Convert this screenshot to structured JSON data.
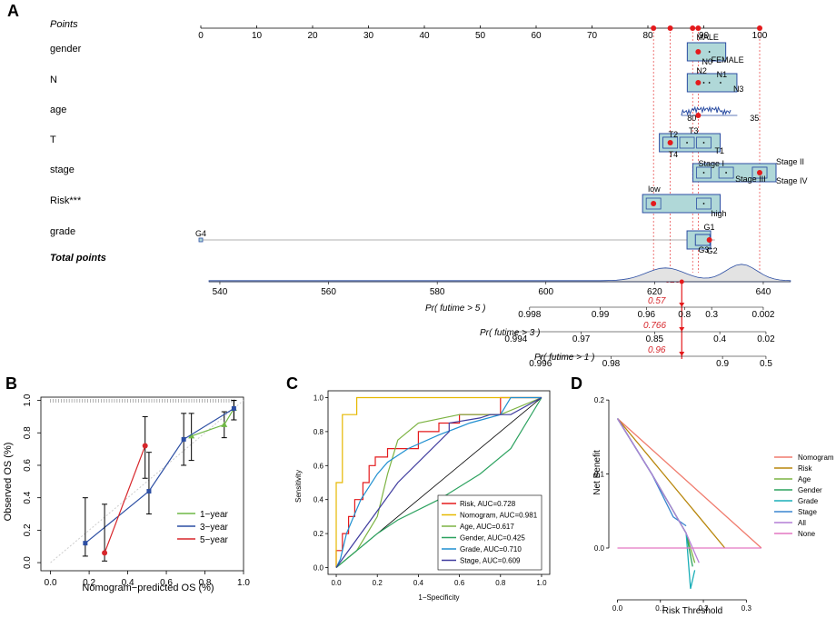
{
  "panel_labels": [
    "A",
    "B",
    "C",
    "D"
  ],
  "chart_data": [
    {
      "type": "nomogram",
      "panel": "A",
      "points_label": "Points",
      "points_ticks": [
        "0",
        "10",
        "20",
        "30",
        "40",
        "50",
        "60",
        "70",
        "80",
        "90",
        "100"
      ],
      "points_values": [
        0,
        10,
        20,
        30,
        40,
        50,
        60,
        70,
        80,
        90,
        100
      ],
      "selected_points": [
        81,
        84,
        88,
        89,
        100
      ],
      "variables": [
        {
          "name": "gender",
          "levels": [
            "MALE",
            "FEMALE"
          ],
          "level_points": [
            89,
            91
          ],
          "selected": 89
        },
        {
          "name": "N",
          "levels": [
            "N2",
            "N1",
            "N3",
            "N0"
          ],
          "level_points": [
            89,
            91,
            93,
            90
          ],
          "selected": 89
        },
        {
          "name": "age",
          "levels": [
            "80",
            "35"
          ],
          "level_points": [
            88,
            95
          ],
          "selected": 89
        },
        {
          "name": "T",
          "levels": [
            "T2",
            "T3",
            "T4",
            "T1"
          ],
          "level_points": [
            84,
            87,
            84,
            90
          ],
          "selected": 84
        },
        {
          "name": "stage",
          "levels": [
            "Stage I",
            "Stage II",
            "Stage III",
            "Stage IV"
          ],
          "level_points": [
            90,
            100,
            94,
            100
          ],
          "selected": 100
        },
        {
          "name": "Risk***",
          "levels": [
            "low",
            "high"
          ],
          "level_points": [
            81,
            90
          ],
          "selected": 81
        },
        {
          "name": "grade",
          "levels": [
            "G4",
            "G1",
            "G3",
            "G2"
          ],
          "level_points": [
            0,
            92,
            90,
            91
          ],
          "selected": 91
        }
      ],
      "total_points_label": "Total points",
      "total_ticks": [
        "540",
        "560",
        "580",
        "600",
        "620",
        "640"
      ],
      "total_values": [
        540,
        560,
        580,
        600,
        620,
        640
      ],
      "total_selected": 625,
      "total_selected_label": "625",
      "probabilities": [
        {
          "label": "Pr( futime > 5 )",
          "value_label": "0.57",
          "ticks": [
            "0.998",
            "0.99",
            "0.96",
            "0.8",
            "0.3",
            "0.002"
          ],
          "tick_totals": [
            597,
            610,
            618.5,
            625.5,
            630.5,
            640
          ]
        },
        {
          "label": "Pr( futime > 3 )",
          "value_label": "0.766",
          "ticks": [
            "0.994",
            "0.97",
            "0.85",
            "0.4",
            "0.02"
          ],
          "tick_totals": [
            594.5,
            606.5,
            620,
            632,
            640.5
          ]
        },
        {
          "label": "Pr( futime > 1 )",
          "value_label": "0.96",
          "ticks": [
            "0.996",
            "0.98",
            "0.9",
            "0.5"
          ],
          "tick_totals": [
            599,
            612,
            632.5,
            640.5
          ]
        }
      ]
    },
    {
      "type": "line",
      "panel": "B",
      "title": "",
      "xlabel": "Nomogram−predicted OS (%)",
      "ylabel": "Observed OS (%)",
      "xlim": [
        0,
        1
      ],
      "ylim": [
        0,
        1
      ],
      "x_ticks": [
        "0.0",
        "0.2",
        "0.4",
        "0.6",
        "0.8",
        "1.0"
      ],
      "y_ticks": [
        "0.0",
        "0.2",
        "0.4",
        "0.6",
        "0.8",
        "1.0"
      ],
      "series": [
        {
          "name": "1−year",
          "color": "#6fb845",
          "x": [
            0.73,
            0.9,
            0.95
          ],
          "y": [
            0.78,
            0.85,
            0.95
          ],
          "lo": [
            0.63,
            0.77,
            0.88
          ],
          "hi": [
            0.92,
            0.93,
            1.0
          ]
        },
        {
          "name": "3−year",
          "color": "#2c4ea3",
          "x": [
            0.18,
            0.51,
            0.69,
            0.95
          ],
          "y": [
            0.12,
            0.44,
            0.76,
            0.95
          ],
          "lo": [
            0.04,
            0.3,
            0.6,
            0.88
          ],
          "hi": [
            0.4,
            0.68,
            0.92,
            1.0
          ]
        },
        {
          "name": "5−year",
          "color": "#d7262b",
          "x": [
            0.28,
            0.49
          ],
          "y": [
            0.06,
            0.72
          ],
          "lo": [
            0.01,
            0.52
          ],
          "hi": [
            0.36,
            0.9
          ]
        }
      ]
    },
    {
      "type": "roc",
      "panel": "C",
      "xlabel": "1−Specificity",
      "ylabel": "Sensitivity",
      "xlim": [
        0,
        1
      ],
      "ylim": [
        0,
        1
      ],
      "x_ticks": [
        "0.0",
        "0.2",
        "0.4",
        "0.6",
        "0.8",
        "1.0"
      ],
      "y_ticks": [
        "0.0",
        "0.2",
        "0.4",
        "0.6",
        "0.8",
        "1.0"
      ],
      "series": [
        {
          "name": "Risk, AUC=0.728",
          "color": "#e41a1c",
          "x": [
            0,
            0,
            0.03,
            0.03,
            0.06,
            0.06,
            0.09,
            0.09,
            0.13,
            0.13,
            0.16,
            0.16,
            0.19,
            0.19,
            0.25,
            0.25,
            0.4,
            0.4,
            0.5,
            0.5,
            0.6,
            0.6,
            0.8,
            0.8,
            1
          ],
          "y": [
            0,
            0.1,
            0.1,
            0.2,
            0.2,
            0.3,
            0.3,
            0.4,
            0.4,
            0.5,
            0.5,
            0.6,
            0.6,
            0.65,
            0.65,
            0.7,
            0.7,
            0.8,
            0.8,
            0.85,
            0.85,
            0.9,
            0.9,
            1,
            1
          ]
        },
        {
          "name": "Nomogram, AUC=0.981",
          "color": "#e6b800",
          "x": [
            0,
            0,
            0.03,
            0.03,
            0.1,
            0.1,
            1
          ],
          "y": [
            0,
            0.5,
            0.5,
            0.9,
            0.9,
            1,
            1
          ]
        },
        {
          "name": "Age, AUC=0.617",
          "color": "#7cb342",
          "x": [
            0,
            0.05,
            0.1,
            0.2,
            0.25,
            0.3,
            0.4,
            0.6,
            0.8,
            1
          ],
          "y": [
            0,
            0.05,
            0.1,
            0.3,
            0.55,
            0.75,
            0.85,
            0.9,
            0.9,
            1
          ]
        },
        {
          "name": "Gender, AUC=0.425",
          "color": "#2ca25f",
          "x": [
            0,
            0.05,
            0.1,
            0.15,
            0.2,
            0.3,
            0.5,
            0.7,
            0.85,
            1
          ],
          "y": [
            0,
            0.05,
            0.1,
            0.15,
            0.2,
            0.28,
            0.4,
            0.55,
            0.7,
            1
          ]
        },
        {
          "name": "Grade, AUC=0.710",
          "color": "#1f8fd0",
          "x": [
            0,
            0.02,
            0.05,
            0.12,
            0.2,
            0.25,
            0.35,
            0.5,
            0.65,
            0.8,
            0.85,
            1
          ],
          "y": [
            0,
            0.05,
            0.2,
            0.4,
            0.55,
            0.62,
            0.7,
            0.78,
            0.85,
            0.9,
            1,
            1
          ]
        },
        {
          "name": "Stage, AUC=0.609",
          "color": "#3f3c9e",
          "x": [
            0,
            0.3,
            0.55,
            0.55,
            0.7,
            0.75,
            0.85,
            1
          ],
          "y": [
            0,
            0.5,
            0.8,
            0.85,
            0.88,
            0.9,
            0.9,
            1
          ]
        }
      ]
    },
    {
      "type": "line",
      "panel": "D",
      "xlabel": "Risk Threshold",
      "ylabel": "Net Benefit",
      "xlim": [
        -0.02,
        0.35
      ],
      "ylim": [
        -0.07,
        0.21
      ],
      "x_ticks": [
        "0.0",
        "0.1",
        "0.2",
        "0.3"
      ],
      "x_tick_values": [
        0,
        0.1,
        0.2,
        0.3
      ],
      "y_ticks": [
        "0.0",
        "0.1",
        "0.2"
      ],
      "y_tick_values": [
        0,
        0.1,
        0.2
      ],
      "series": [
        {
          "name": "Nomogram",
          "color": "#f07c6e",
          "x": [
            0,
            0.335
          ],
          "y": [
            0.175,
            0.0
          ]
        },
        {
          "name": "Risk",
          "color": "#b8860b",
          "x": [
            0,
            0.1,
            0.25
          ],
          "y": [
            0.175,
            0.105,
            0.0
          ]
        },
        {
          "name": "Age",
          "color": "#7cb342",
          "x": [
            0,
            0.08,
            0.12,
            0.16,
            0.18
          ],
          "y": [
            0.175,
            0.1,
            0.06,
            0.02,
            -0.02
          ]
        },
        {
          "name": "Gender",
          "color": "#2ca25f",
          "x": [
            0,
            0.08,
            0.12,
            0.16,
            0.175
          ],
          "y": [
            0.175,
            0.1,
            0.06,
            0.02,
            -0.025
          ]
        },
        {
          "name": "Grade",
          "color": "#1aaeb8",
          "x": [
            0,
            0.08,
            0.12,
            0.16,
            0.17,
            0.18
          ],
          "y": [
            0.175,
            0.1,
            0.06,
            0.02,
            -0.055,
            -0.03
          ]
        },
        {
          "name": "Stage",
          "color": "#3a86d0",
          "x": [
            0,
            0.08,
            0.13,
            0.16
          ],
          "y": [
            0.175,
            0.1,
            0.042,
            0.03
          ]
        },
        {
          "name": "All",
          "color": "#b37fd6",
          "x": [
            0,
            0.08,
            0.12,
            0.16,
            0.19
          ],
          "y": [
            0.175,
            0.1,
            0.06,
            0.02,
            -0.02
          ]
        },
        {
          "name": "None",
          "color": "#e377c2",
          "x": [
            0,
            0.335
          ],
          "y": [
            0.0,
            0.0
          ]
        }
      ]
    }
  ]
}
